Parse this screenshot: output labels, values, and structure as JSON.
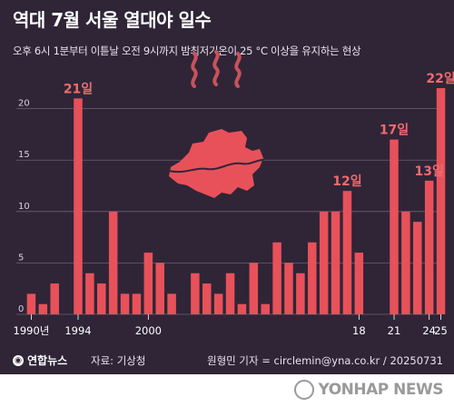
{
  "title": "역대 7월 서울 열대야 일수",
  "subtitle": "오후 6시 1분부터 이튿날 오전 9시까지 밤최저기온이 25 °C 이상을 유지하는 현상",
  "footer": {
    "logo": "연합뉴스",
    "source": "자료: 기상청",
    "credit": "원형민 기자 = circlemin@yna.co.kr / 20250731"
  },
  "watermark": "YONHAP NEWS",
  "colors": {
    "background": "#2f2537",
    "bar": "#e8515a",
    "label": "#f06a6e",
    "grid": "#6b5f74",
    "seoul_map": "#e8515a"
  },
  "icons": [
    "seoul-map-icon",
    "heat-wave-icon"
  ],
  "chart_data": {
    "type": "bar",
    "title": "역대 7월 서울 열대야 일수",
    "xlabel": "",
    "ylabel": "",
    "ylim": [
      0,
      22
    ],
    "yticks": [
      0,
      5,
      10,
      15,
      20
    ],
    "grid": true,
    "x": [
      1990,
      1991,
      1992,
      1993,
      1994,
      1995,
      1996,
      1997,
      1998,
      1999,
      2000,
      2001,
      2002,
      2003,
      2004,
      2005,
      2006,
      2007,
      2008,
      2009,
      2010,
      2011,
      2012,
      2013,
      2014,
      2015,
      2016,
      2017,
      2018,
      2019,
      2020,
      2021,
      2022,
      2023,
      2024,
      2025
    ],
    "values": [
      2,
      1,
      3,
      0,
      21,
      4,
      3,
      10,
      2,
      2,
      6,
      5,
      2,
      0,
      4,
      3,
      2,
      4,
      1,
      5,
      1,
      7,
      5,
      4,
      7,
      10,
      10,
      12,
      6,
      0,
      0,
      17,
      10,
      9,
      13,
      22
    ],
    "x_tick_labels": [
      {
        "year": 1990,
        "label": "1990년"
      },
      {
        "year": 1994,
        "label": "1994"
      },
      {
        "year": 2000,
        "label": "2000"
      },
      {
        "year": 2018,
        "label": "18"
      },
      {
        "year": 2021,
        "label": "21"
      },
      {
        "year": 2024,
        "label": "24"
      },
      {
        "year": 2025,
        "label": "25"
      }
    ],
    "annotations": [
      {
        "year": 1994,
        "text": "21일"
      },
      {
        "year": 2017,
        "text": "12일"
      },
      {
        "year": 2021,
        "text": "17일"
      },
      {
        "year": 2024,
        "text": "13일"
      },
      {
        "year": 2025,
        "text": "22일"
      }
    ]
  }
}
